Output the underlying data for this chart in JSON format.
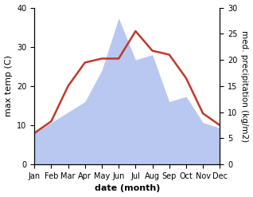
{
  "months": [
    "Jan",
    "Feb",
    "Mar",
    "Apr",
    "May",
    "Jun",
    "Jul",
    "Aug",
    "Sep",
    "Oct",
    "Nov",
    "Dec"
  ],
  "max_temp": [
    8,
    11,
    20,
    26,
    27,
    27,
    34,
    29,
    28,
    22,
    13,
    10
  ],
  "precipitation": [
    6,
    8,
    10,
    12,
    18,
    28,
    20,
    21,
    12,
    13,
    8,
    7
  ],
  "temp_color": "#c0392b",
  "precip_fill_color": "#b8c8f0",
  "temp_ylim": [
    0,
    40
  ],
  "precip_ylim": [
    0,
    30
  ],
  "temp_yticks": [
    0,
    10,
    20,
    30,
    40
  ],
  "precip_yticks": [
    0,
    5,
    10,
    15,
    20,
    25,
    30
  ],
  "xlabel": "date (month)",
  "ylabel_left": "max temp (C)",
  "ylabel_right": "med. precipitation (kg/m2)",
  "label_fontsize": 8,
  "tick_fontsize": 7
}
